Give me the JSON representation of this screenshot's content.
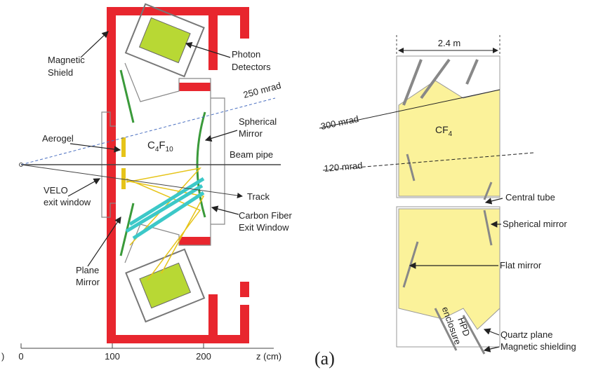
{
  "left": {
    "labels": {
      "magnetic_shield": [
        "Magnetic",
        "Shield"
      ],
      "photon_detectors": [
        "Photon",
        "Detectors"
      ],
      "angle": "250 mrad",
      "spherical_mirror": [
        "Spherical",
        "Mirror"
      ],
      "aerogel": "Aerogel",
      "gas": [
        "C",
        "4",
        "F",
        "10"
      ],
      "beam_pipe": "Beam pipe",
      "velo": [
        "VELO",
        "exit window"
      ],
      "track": "Track",
      "exit_window": [
        "Carbon Fiber",
        "Exit Window"
      ],
      "plane_mirror": [
        "Plane",
        "Mirror"
      ]
    },
    "axis": {
      "fragment": ")",
      "ticks": [
        "0",
        "100",
        "200"
      ],
      "label": "z (cm)"
    }
  },
  "right": {
    "width": "2.4 m",
    "angle_high": "300 mrad",
    "gas": [
      "CF",
      "4"
    ],
    "angle_low": "120 mrad",
    "central_tube": "Central tube",
    "spherical_mirror": "Spherical mirror",
    "flat_mirror": "Flat mirror",
    "quartz_plane": "Quartz plane",
    "magnetic_shielding": "Magnetic shielding",
    "hpd": [
      "HPD",
      "enclosure"
    ]
  },
  "caption": "(a)"
}
